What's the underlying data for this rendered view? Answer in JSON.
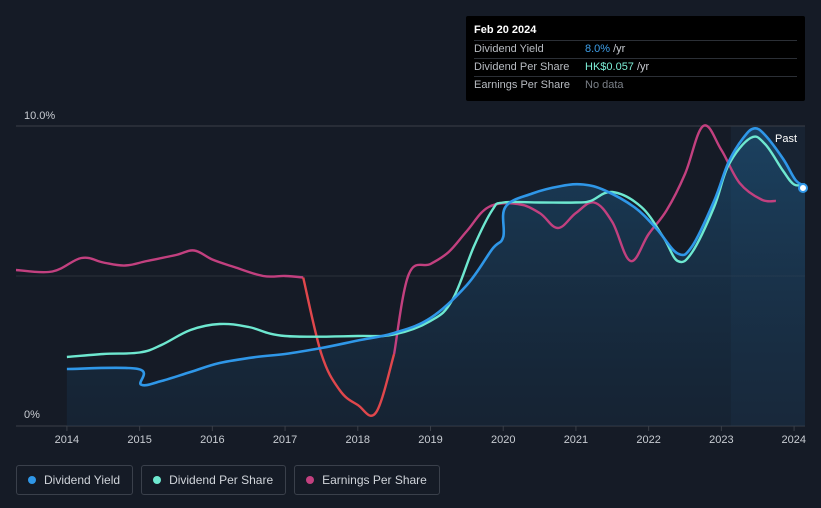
{
  "colors": {
    "dividend_yield": "#2f97e8",
    "dividend_per_share": "#6ee8d0",
    "earnings_per_share": "#c2407f",
    "eps_decline": "#e0474c"
  },
  "tooltip": {
    "date": "Feb 20 2024",
    "rows": [
      {
        "label": "Dividend Yield",
        "value": "8.0%",
        "unit": "/yr"
      },
      {
        "label": "Dividend Per Share",
        "value": "HK$0.057",
        "unit": "/yr"
      },
      {
        "label": "Earnings Per Share",
        "value": "No data",
        "unit": ""
      }
    ]
  },
  "past_label": "Past",
  "legend": [
    {
      "label": "Dividend Yield"
    },
    {
      "label": "Dividend Per Share"
    },
    {
      "label": "Earnings Per Share"
    }
  ],
  "chart_data": {
    "type": "line",
    "title": "",
    "xlabel": "",
    "ylabel": "",
    "xlim": [
      2013.3,
      2024.15
    ],
    "ylim": [
      0,
      10
    ],
    "y_tick_labels": [
      "0%",
      "10.0%"
    ],
    "x_tick_labels": [
      "2014",
      "2015",
      "2016",
      "2017",
      "2018",
      "2019",
      "2020",
      "2021",
      "2022",
      "2023",
      "2024"
    ],
    "forecast_region_start": 2023.13,
    "series": [
      {
        "name": "Dividend Yield",
        "unit": "%",
        "points": [
          [
            2014.0,
            1.9
          ],
          [
            2014.98,
            1.9
          ],
          [
            2015.02,
            1.38
          ],
          [
            2015.3,
            1.5
          ],
          [
            2015.7,
            1.8
          ],
          [
            2016.1,
            2.1
          ],
          [
            2016.6,
            2.3
          ],
          [
            2017.0,
            2.4
          ],
          [
            2017.5,
            2.6
          ],
          [
            2018.0,
            2.85
          ],
          [
            2018.5,
            3.1
          ],
          [
            2019.0,
            3.6
          ],
          [
            2019.5,
            4.7
          ],
          [
            2019.85,
            5.9
          ],
          [
            2020.0,
            6.3
          ],
          [
            2020.03,
            7.3
          ],
          [
            2020.4,
            7.75
          ],
          [
            2020.8,
            8.0
          ],
          [
            2021.1,
            8.05
          ],
          [
            2021.4,
            7.85
          ],
          [
            2021.8,
            7.3
          ],
          [
            2022.1,
            6.6
          ],
          [
            2022.4,
            5.75
          ],
          [
            2022.6,
            6.0
          ],
          [
            2022.9,
            7.5
          ],
          [
            2023.1,
            8.8
          ],
          [
            2023.3,
            9.6
          ],
          [
            2023.45,
            9.92
          ],
          [
            2023.6,
            9.7
          ],
          [
            2023.85,
            8.9
          ],
          [
            2024.02,
            8.2
          ],
          [
            2024.15,
            8.0
          ]
        ]
      },
      {
        "name": "Dividend Per Share",
        "unit": "HK$",
        "points": [
          [
            2014.0,
            2.3
          ],
          [
            2014.5,
            2.4
          ],
          [
            2015.0,
            2.45
          ],
          [
            2015.3,
            2.7
          ],
          [
            2015.7,
            3.2
          ],
          [
            2016.1,
            3.4
          ],
          [
            2016.5,
            3.3
          ],
          [
            2017.0,
            3.0
          ],
          [
            2018.0,
            3.0
          ],
          [
            2018.5,
            3.05
          ],
          [
            2019.0,
            3.5
          ],
          [
            2019.3,
            4.2
          ],
          [
            2019.6,
            6.0
          ],
          [
            2019.85,
            7.2
          ],
          [
            2020.0,
            7.45
          ],
          [
            2020.5,
            7.45
          ],
          [
            2021.0,
            7.45
          ],
          [
            2021.2,
            7.5
          ],
          [
            2021.5,
            7.8
          ],
          [
            2021.9,
            7.3
          ],
          [
            2022.2,
            6.3
          ],
          [
            2022.4,
            5.5
          ],
          [
            2022.6,
            5.8
          ],
          [
            2022.9,
            7.3
          ],
          [
            2023.1,
            8.7
          ],
          [
            2023.4,
            9.6
          ],
          [
            2023.6,
            9.4
          ],
          [
            2023.85,
            8.5
          ],
          [
            2024.0,
            8.05
          ],
          [
            2024.15,
            8.05
          ]
        ]
      },
      {
        "name": "Earnings Per Share",
        "unit": "HK$",
        "points": [
          [
            2013.3,
            5.2
          ],
          [
            2013.8,
            5.15
          ],
          [
            2014.2,
            5.6
          ],
          [
            2014.5,
            5.45
          ],
          [
            2014.8,
            5.35
          ],
          [
            2015.1,
            5.5
          ],
          [
            2015.5,
            5.7
          ],
          [
            2015.75,
            5.85
          ],
          [
            2016.0,
            5.55
          ],
          [
            2016.3,
            5.3
          ],
          [
            2016.7,
            5.0
          ],
          [
            2017.0,
            5.0
          ],
          [
            2017.25,
            4.95
          ],
          [
            2017.5,
            2.4
          ],
          [
            2017.75,
            1.2
          ],
          [
            2018.0,
            0.7
          ],
          [
            2018.25,
            0.45
          ],
          [
            2018.5,
            2.4
          ],
          [
            2018.7,
            5.05
          ],
          [
            2019.0,
            5.4
          ],
          [
            2019.25,
            5.8
          ],
          [
            2019.5,
            6.5
          ],
          [
            2019.8,
            7.3
          ],
          [
            2020.2,
            7.4
          ],
          [
            2020.5,
            7.1
          ],
          [
            2020.75,
            6.6
          ],
          [
            2021.0,
            7.1
          ],
          [
            2021.25,
            7.45
          ],
          [
            2021.5,
            6.8
          ],
          [
            2021.75,
            5.5
          ],
          [
            2022.0,
            6.4
          ],
          [
            2022.25,
            7.2
          ],
          [
            2022.5,
            8.4
          ],
          [
            2022.75,
            10.0
          ],
          [
            2023.0,
            9.2
          ],
          [
            2023.25,
            8.1
          ],
          [
            2023.55,
            7.55
          ],
          [
            2023.75,
            7.5
          ]
        ]
      }
    ]
  }
}
